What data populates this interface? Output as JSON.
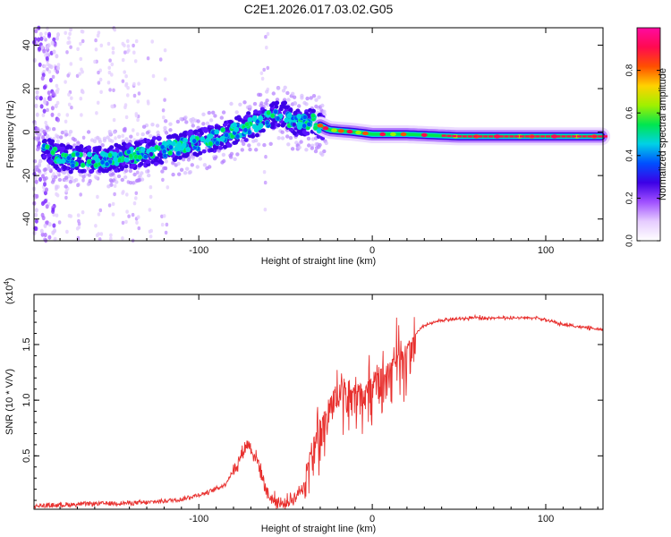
{
  "title": "C2E1.2026.017.03.02.G05",
  "chart_data": [
    {
      "type": "heatmap",
      "name": "spectrogram",
      "xlabel": "Height of straight line (km)",
      "ylabel": "Frequency (Hz)",
      "xlim": [
        -195,
        133
      ],
      "ylim": [
        -50,
        48
      ],
      "xticks": [
        -100,
        0,
        100
      ],
      "yticks": [
        -40,
        -20,
        0,
        20,
        40
      ],
      "ridge": [
        {
          "x": -195,
          "y": -6
        },
        {
          "x": -180,
          "y": -12
        },
        {
          "x": -160,
          "y": -13
        },
        {
          "x": -140,
          "y": -11
        },
        {
          "x": -120,
          "y": -8
        },
        {
          "x": -100,
          "y": -5
        },
        {
          "x": -85,
          "y": -1
        },
        {
          "x": -70,
          "y": 3
        },
        {
          "x": -60,
          "y": 6
        },
        {
          "x": -52,
          "y": 9
        },
        {
          "x": -45,
          "y": 4
        },
        {
          "x": -35,
          "y": 5
        },
        {
          "x": -25,
          "y": 1
        },
        {
          "x": -10,
          "y": 0
        },
        {
          "x": 0,
          "y": -1
        },
        {
          "x": 20,
          "y": -1
        },
        {
          "x": 50,
          "y": -2
        },
        {
          "x": 80,
          "y": -2
        },
        {
          "x": 110,
          "y": -2
        },
        {
          "x": 133,
          "y": -2
        }
      ],
      "colorbar": {
        "label": "Normalized spectral amplitude",
        "ticks": [
          "0.0",
          "0.2",
          "0.4",
          "0.6",
          "0.8"
        ],
        "colors": [
          "#ffffff",
          "#e6ccff",
          "#a050ff",
          "#3c00e6",
          "#0050ff",
          "#00d2e6",
          "#00e650",
          "#a0f000",
          "#ffd200",
          "#ff5000",
          "#ff0a50",
          "#ff0aa0"
        ]
      }
    },
    {
      "type": "line",
      "name": "snr",
      "xlabel": "Height of straight line (km)",
      "ylabel": "SNR (10 * V/V)",
      "scale_label": "(x10",
      "scale_exp": "4",
      "color": "#e8302e",
      "xlim": [
        -195,
        133
      ],
      "ylim": [
        0.02,
        1.95
      ],
      "xticks": [
        -100,
        0,
        100
      ],
      "yticks": [
        "0.5",
        "1.0",
        "1.5"
      ],
      "envelope": [
        {
          "x": -195,
          "y": 0.05
        },
        {
          "x": -160,
          "y": 0.07
        },
        {
          "x": -130,
          "y": 0.08
        },
        {
          "x": -110,
          "y": 0.11
        },
        {
          "x": -95,
          "y": 0.17
        },
        {
          "x": -85,
          "y": 0.24
        },
        {
          "x": -78,
          "y": 0.42
        },
        {
          "x": -72,
          "y": 0.62
        },
        {
          "x": -66,
          "y": 0.45
        },
        {
          "x": -60,
          "y": 0.14
        },
        {
          "x": -52,
          "y": 0.06
        },
        {
          "x": -45,
          "y": 0.12
        },
        {
          "x": -40,
          "y": 0.22
        },
        {
          "x": -36,
          "y": 0.55
        },
        {
          "x": -30,
          "y": 0.85
        },
        {
          "x": -24,
          "y": 1.05
        },
        {
          "x": -18,
          "y": 1.25
        },
        {
          "x": -12,
          "y": 1.15
        },
        {
          "x": -5,
          "y": 1.15
        },
        {
          "x": 3,
          "y": 1.3
        },
        {
          "x": 10,
          "y": 1.35
        },
        {
          "x": 15,
          "y": 1.42
        },
        {
          "x": 22,
          "y": 1.55
        },
        {
          "x": 30,
          "y": 1.67
        },
        {
          "x": 40,
          "y": 1.72
        },
        {
          "x": 60,
          "y": 1.74
        },
        {
          "x": 80,
          "y": 1.74
        },
        {
          "x": 95,
          "y": 1.74
        },
        {
          "x": 110,
          "y": 1.68
        },
        {
          "x": 133,
          "y": 1.63
        }
      ]
    }
  ]
}
